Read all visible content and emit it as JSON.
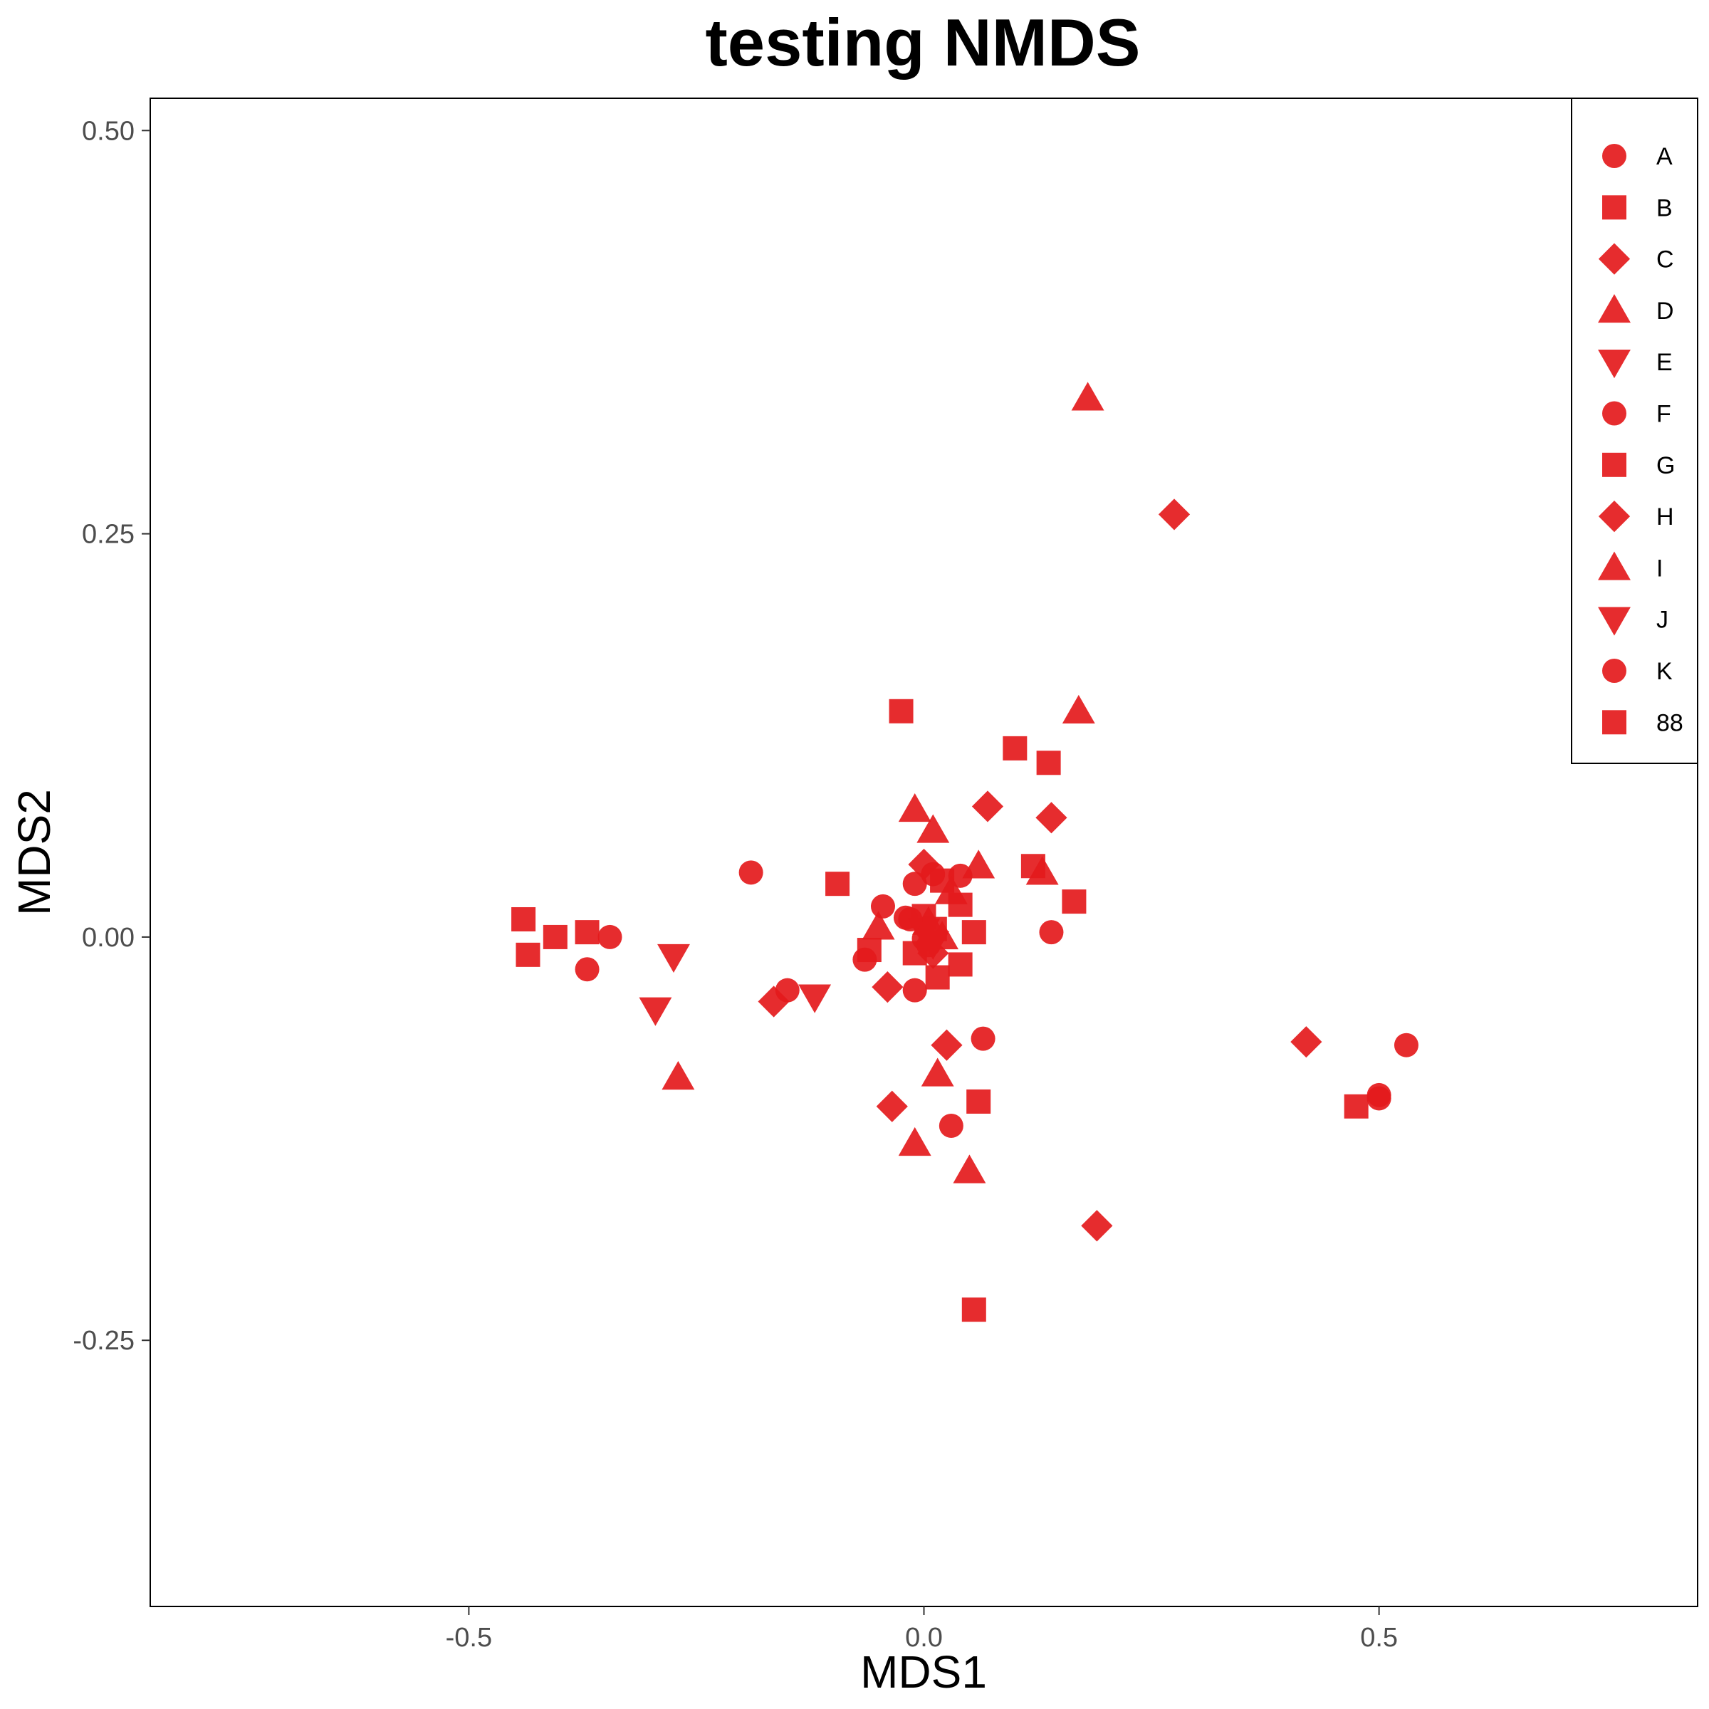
{
  "colors": {
    "point": "#e41a1c",
    "frame": "#000000",
    "tick_text": "#4d4d4d"
  },
  "chart_data": {
    "type": "scatter",
    "title": "testing NMDS",
    "xlabel": "MDS1",
    "ylabel": "MDS2",
    "xlim": [
      -0.85,
      0.85
    ],
    "ylim": [
      -0.415,
      0.52
    ],
    "xticks": [
      -0.5,
      0.0,
      0.5
    ],
    "xtick_labels": [
      "-0.5",
      "0.0",
      "0.5"
    ],
    "yticks": [
      -0.25,
      0.0,
      0.25,
      0.5
    ],
    "ytick_labels": [
      "-0.25",
      "0.00",
      "0.25",
      "0.50"
    ],
    "grid": false,
    "legend_position": "top-right",
    "series": [
      {
        "name": "A",
        "shape": "circle",
        "points": [
          [
            -0.19,
            0.04
          ],
          [
            -0.345,
            0.0
          ],
          [
            -0.37,
            -0.02
          ],
          [
            -0.15,
            -0.033
          ],
          [
            0.065,
            -0.063
          ],
          [
            0.14,
            0.003
          ],
          [
            0.53,
            -0.067
          ]
        ]
      },
      {
        "name": "B",
        "shape": "square",
        "points": [
          [
            -0.44,
            0.011
          ],
          [
            -0.435,
            -0.011
          ],
          [
            -0.405,
            0.0
          ],
          [
            -0.37,
            0.003
          ],
          [
            -0.025,
            0.14
          ],
          [
            0.1,
            0.117
          ],
          [
            0.137,
            0.108
          ],
          [
            0.165,
            0.022
          ]
        ]
      },
      {
        "name": "C",
        "shape": "diamond",
        "points": [
          [
            0.275,
            0.262
          ],
          [
            0.07,
            0.081
          ],
          [
            0.14,
            0.074
          ],
          [
            -0.04,
            -0.031
          ],
          [
            0.025,
            -0.067
          ],
          [
            0.42,
            -0.065
          ],
          [
            -0.035,
            -0.105
          ],
          [
            0.19,
            -0.179
          ]
        ]
      },
      {
        "name": "D",
        "shape": "triangle-up",
        "points": [
          [
            0.18,
            0.334
          ],
          [
            0.17,
            0.14
          ],
          [
            -0.01,
            0.079
          ],
          [
            0.01,
            0.066
          ],
          [
            0.06,
            0.044
          ],
          [
            0.13,
            0.04
          ],
          [
            -0.05,
            0.006
          ],
          [
            0.015,
            -0.085
          ],
          [
            -0.01,
            -0.128
          ],
          [
            0.05,
            -0.145
          ]
        ]
      },
      {
        "name": "E",
        "shape": "triangle-down",
        "points": [
          [
            -0.275,
            -0.012
          ],
          [
            -0.295,
            -0.045
          ],
          [
            -0.12,
            -0.037
          ]
        ]
      },
      {
        "name": "F",
        "shape": "circle",
        "points": [
          [
            -0.045,
            0.019
          ],
          [
            -0.01,
            0.033
          ],
          [
            0.01,
            0.039
          ],
          [
            0.04,
            0.038
          ],
          [
            -0.02,
            0.012
          ],
          [
            0.0,
            -0.001
          ],
          [
            -0.065,
            -0.014
          ],
          [
            -0.01,
            -0.033
          ],
          [
            0.03,
            -0.117
          ],
          [
            0.5,
            -0.098
          ],
          [
            0.5,
            -0.1
          ]
        ]
      },
      {
        "name": "G",
        "shape": "square",
        "points": [
          [
            -0.095,
            0.033
          ],
          [
            0.12,
            0.044
          ],
          [
            0.02,
            0.035
          ],
          [
            0.04,
            0.02
          ],
          [
            0.055,
            0.003
          ],
          [
            0.0,
            0.013
          ],
          [
            -0.06,
            -0.008
          ],
          [
            -0.01,
            -0.01
          ],
          [
            0.04,
            -0.017
          ],
          [
            0.015,
            -0.025
          ],
          [
            0.06,
            -0.102
          ],
          [
            0.055,
            -0.231
          ],
          [
            0.475,
            -0.105
          ]
        ]
      },
      {
        "name": "H",
        "shape": "diamond",
        "points": [
          [
            -0.165,
            -0.04
          ],
          [
            0.0,
            0.045
          ],
          [
            0.01,
            -0.01
          ]
        ]
      },
      {
        "name": "I",
        "shape": "triangle-up",
        "points": [
          [
            -0.27,
            -0.087
          ],
          [
            0.03,
            0.028
          ],
          [
            0.02,
            0.0
          ],
          [
            0.005,
            0.009
          ]
        ]
      },
      {
        "name": "J",
        "shape": "triangle-down",
        "points": [
          [
            0.0,
            0.004
          ],
          [
            0.01,
            -0.004
          ]
        ]
      },
      {
        "name": "K",
        "shape": "circle",
        "points": [
          [
            -0.015,
            0.011
          ],
          [
            0.005,
            -0.005
          ]
        ]
      },
      {
        "name": "88",
        "shape": "square",
        "points": [
          [
            0.012,
            0.005
          ]
        ]
      }
    ]
  }
}
